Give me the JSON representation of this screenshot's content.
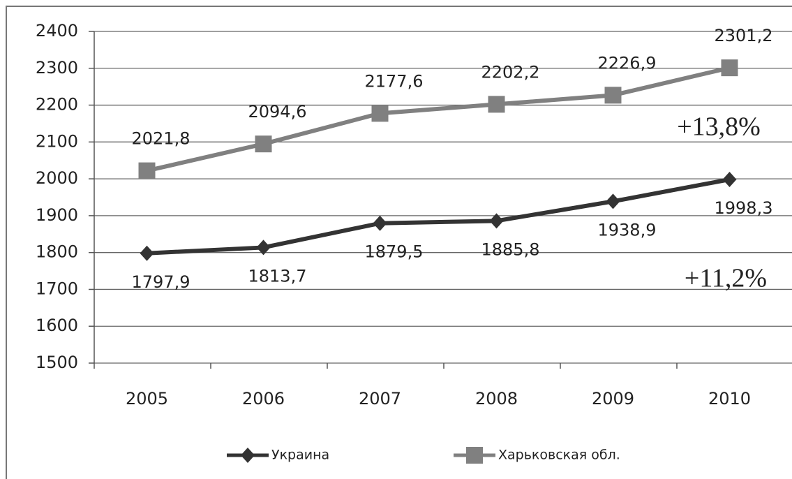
{
  "chart_data": {
    "type": "line",
    "categories": [
      "2005",
      "2006",
      "2007",
      "2008",
      "2009",
      "2010"
    ],
    "series": [
      {
        "name": "Украина",
        "color": "#333333",
        "marker": "diamond",
        "values": [
          1797.9,
          1813.7,
          1879.5,
          1885.8,
          1938.9,
          1998.3
        ],
        "value_labels": [
          "1797,9",
          "1813,7",
          "1879,5",
          "1885,8",
          "1938,9",
          "1998,3"
        ]
      },
      {
        "name": "Харьковская обл.",
        "color": "#808080",
        "marker": "square",
        "values": [
          2021.8,
          2094.6,
          2177.6,
          2202.2,
          2226.9,
          2301.2
        ],
        "value_labels": [
          "2021,8",
          "2094,6",
          "2177,6",
          "2202,2",
          "2226,9",
          "2301,2"
        ]
      }
    ],
    "annotations": [
      "+13,8%",
      "+11,2%"
    ],
    "ylim": [
      1500,
      2400
    ],
    "yticks": [
      1500,
      1600,
      1700,
      1800,
      1900,
      2000,
      2100,
      2200,
      2300,
      2400
    ],
    "grid": true,
    "legend": "bottom"
  }
}
